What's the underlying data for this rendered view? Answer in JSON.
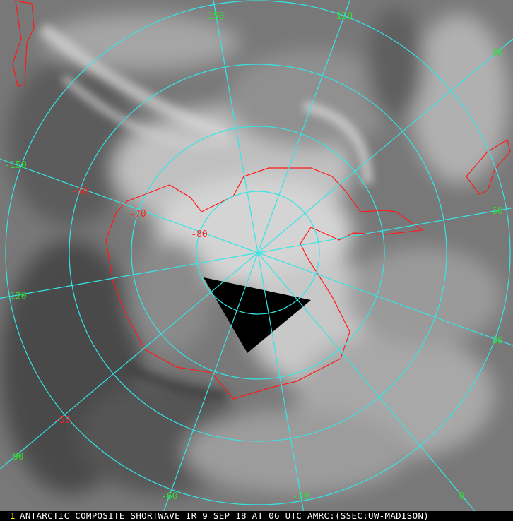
{
  "caption": "ANTARCTIC COMPOSITE SHORTWAVE IR 9 SEP 18 AT 06 UTC AMRC:(SSEC:UW-MADISON)",
  "caption_marker": "1",
  "grid": {
    "longitude_labels": [
      "150",
      "120",
      "90",
      "60",
      "30",
      "0",
      "-30",
      "-60",
      "-90",
      "-120",
      "-150"
    ],
    "latitude_labels": [
      "-80",
      "-70",
      "-60",
      "-50"
    ]
  },
  "colors": {
    "grid": "#33e6e6",
    "longitude_label": "#33dd33",
    "latitude_label": "#ff2020",
    "coastline": "#ff1a1a",
    "no_data": "#000000"
  }
}
